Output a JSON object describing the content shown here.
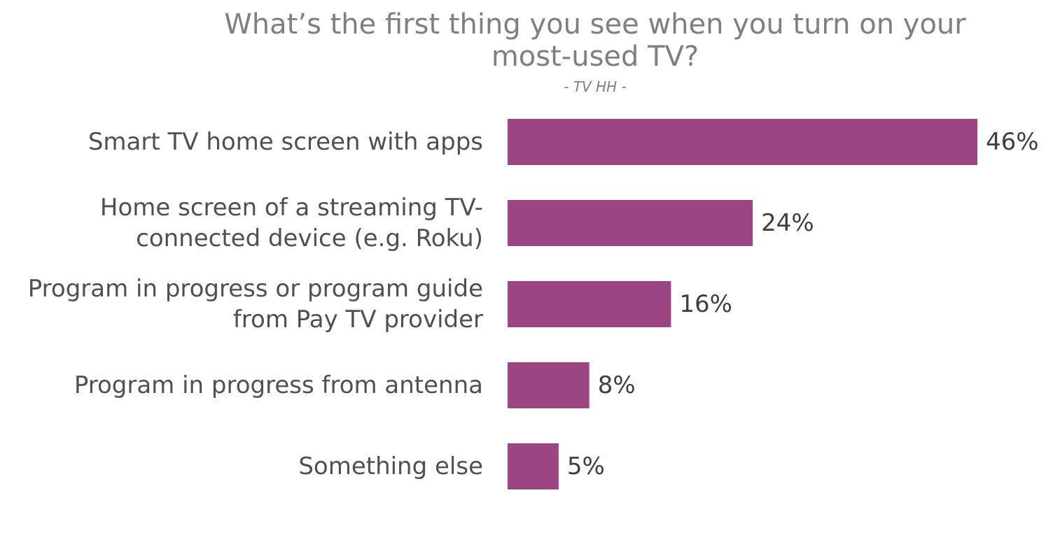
{
  "chart_data": {
    "type": "bar",
    "orientation": "horizontal",
    "title": "What’s the first thing you see when you turn on your most-used TV?",
    "subtitle": "- TV HH -",
    "categories": [
      "Smart TV home screen with apps",
      "Home screen of a streaming TV-connected device (e.g. Roku)",
      "Program in progress or program guide from Pay TV provider",
      "Program in progress from antenna",
      "Something else"
    ],
    "category_lines": [
      [
        "Smart TV home screen with apps"
      ],
      [
        "Home screen of a streaming TV-",
        "connected device (e.g. Roku)"
      ],
      [
        "Program in progress or program guide",
        "from Pay TV provider"
      ],
      [
        "Program in progress from antenna"
      ],
      [
        "Something else"
      ]
    ],
    "values": [
      46,
      24,
      16,
      8,
      5
    ],
    "value_labels": [
      "46%",
      "24%",
      "16%",
      "8%",
      "5%"
    ],
    "bar_color": "#9b4682",
    "xlim": [
      0,
      46
    ],
    "grid": false,
    "legend": "none"
  }
}
